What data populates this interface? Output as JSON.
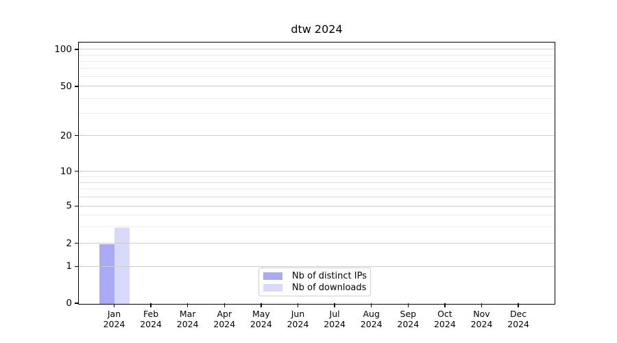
{
  "figure": {
    "background": "#ffffff"
  },
  "chart_data": {
    "type": "bar",
    "title": "dtw 2024",
    "categories": [
      "Jan 2024",
      "Feb 2024",
      "Mar 2024",
      "Apr 2024",
      "May 2024",
      "Jun 2024",
      "Jul 2024",
      "Aug 2024",
      "Sep 2024",
      "Oct 2024",
      "Nov 2024",
      "Dec 2024"
    ],
    "series": [
      {
        "name": "Nb of distinct IPs",
        "color": "#a9a9f5",
        "values": [
          2,
          0,
          0,
          0,
          0,
          0,
          0,
          0,
          0,
          0,
          0,
          0
        ]
      },
      {
        "name": "Nb of downloads",
        "color": "#d9d9fa",
        "values": [
          3,
          0,
          0,
          0,
          0,
          0,
          0,
          0,
          0,
          0,
          0,
          0
        ]
      }
    ],
    "xlabel": "",
    "ylabel": "",
    "yscale": "symlog",
    "ylim": [
      0,
      110
    ],
    "y_major_ticks": [
      0,
      1,
      2,
      5,
      10,
      20,
      50,
      100
    ],
    "y_minor_gridlines": [
      3,
      4,
      6,
      7,
      8,
      9,
      30,
      40,
      60,
      70,
      80,
      90
    ],
    "y_scale_anchors": [
      [
        0,
        1.0
      ],
      [
        1,
        0.859
      ],
      [
        2,
        0.77
      ],
      [
        5,
        0.627
      ],
      [
        10,
        0.494
      ],
      [
        20,
        0.357
      ],
      [
        50,
        0.168
      ],
      [
        100,
        0.026
      ]
    ],
    "grid": "both",
    "legend_position": "lower center inside"
  },
  "legend": {
    "items": [
      {
        "label": "Nb of distinct IPs",
        "color": "#a9a9f5"
      },
      {
        "label": "Nb of downloads",
        "color": "#d9d9fa"
      }
    ]
  },
  "colors": {
    "grid_major": "#cccccc",
    "grid_minor": "#ebebeb",
    "spine": "#000000",
    "legend_border": "#cccccc",
    "text": "#000000"
  }
}
